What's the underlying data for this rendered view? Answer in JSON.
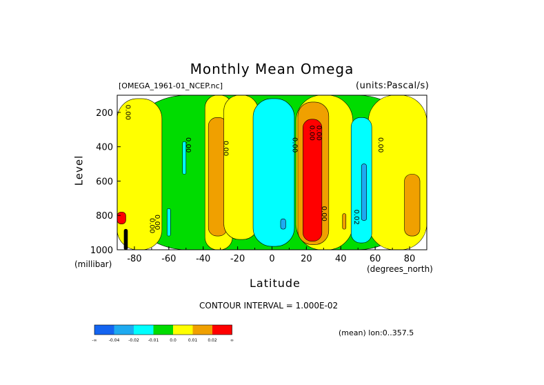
{
  "chart_data": {
    "type": "heatmap",
    "title": "Monthly Mean Omega",
    "subtitle_left": "[OMEGA_1961-01_NCEP.nc]",
    "subtitle_right": "(units:Pascal/s)",
    "xlabel": "Latitude",
    "x_unit": "(degrees_north)",
    "ylabel": "Level",
    "y_unit": "(millibar)",
    "xlim": [
      -90,
      90
    ],
    "ylim": [
      1000,
      100
    ],
    "y_axis_inverted": true,
    "x_ticks": [
      "-80",
      "-60",
      "-40",
      "-20",
      "0",
      "20",
      "40",
      "60",
      "80"
    ],
    "x_tick_values": [
      -80,
      -60,
      -40,
      -20,
      0,
      20,
      40,
      60,
      80
    ],
    "y_ticks": [
      "200",
      "400",
      "600",
      "800",
      "1000"
    ],
    "y_tick_values": [
      200,
      400,
      600,
      800,
      1000
    ],
    "contour_interval_label": "CONTOUR INTERVAL = 1.000E-02",
    "region_label": "(mean) lon:0..357.5",
    "contour_labels": [
      "0.00",
      "0.00",
      "0.00",
      "0.00",
      "0.00",
      "0.00",
      "0.00",
      "0.00",
      "0.00",
      "0.02",
      "0.00"
    ],
    "colorbar": {
      "colors": [
        "#1464f0",
        "#1eaaf0",
        "#00ffff",
        "#00dc00",
        "#ffff00",
        "#f0a000",
        "#ff0000"
      ],
      "labels": [
        "-∞",
        "-0.04",
        "-0.02",
        "-0.01",
        "0.0",
        "0.01",
        "0.02",
        "∞"
      ],
      "levels": [
        -0.04,
        -0.02,
        -0.01,
        0.0,
        0.01,
        0.02
      ]
    },
    "regions": [
      {
        "category": 3,
        "lat": [
          -90,
          90
        ],
        "lev": [
          100,
          1000
        ]
      },
      {
        "category": 4,
        "lat": [
          -90,
          -64
        ],
        "lev": [
          120,
          1000
        ]
      },
      {
        "category": 4,
        "lat": [
          -39,
          -23
        ],
        "lev": [
          100,
          1000
        ]
      },
      {
        "category": 5,
        "lat": [
          -37,
          -26
        ],
        "lev": [
          230,
          920
        ]
      },
      {
        "category": 4,
        "lat": [
          -28,
          -8
        ],
        "lev": [
          100,
          940
        ]
      },
      {
        "category": 4,
        "lat": [
          14,
          47
        ],
        "lev": [
          100,
          1000
        ]
      },
      {
        "category": 5,
        "lat": [
          15,
          33
        ],
        "lev": [
          140,
          970
        ]
      },
      {
        "category": 6,
        "lat": [
          18,
          29
        ],
        "lev": [
          240,
          950
        ]
      },
      {
        "category": 4,
        "lat": [
          56,
          90
        ],
        "lev": [
          100,
          1000
        ]
      },
      {
        "category": 5,
        "lat": [
          77,
          86
        ],
        "lev": [
          560,
          920
        ]
      },
      {
        "category": 2,
        "lat": [
          -11,
          13
        ],
        "lev": [
          120,
          980
        ]
      },
      {
        "category": 1,
        "lat": [
          5,
          8
        ],
        "lev": [
          820,
          880
        ]
      },
      {
        "category": 2,
        "lat": [
          46,
          58
        ],
        "lev": [
          230,
          960
        ]
      },
      {
        "category": 1,
        "lat": [
          52,
          55
        ],
        "lev": [
          500,
          830
        ]
      },
      {
        "category": 2,
        "lat": [
          -52,
          -50
        ],
        "lev": [
          370,
          560
        ]
      },
      {
        "category": 2,
        "lat": [
          -61,
          -59
        ],
        "lev": [
          760,
          920
        ]
      },
      {
        "category": 6,
        "lat": [
          -90,
          -85
        ],
        "lev": [
          780,
          850
        ]
      },
      {
        "category": 7,
        "lat": [
          -86,
          -84
        ],
        "lev": [
          880,
          1000
        ]
      },
      {
        "category": 5,
        "lat": [
          41,
          43
        ],
        "lev": [
          790,
          880
        ]
      }
    ]
  }
}
